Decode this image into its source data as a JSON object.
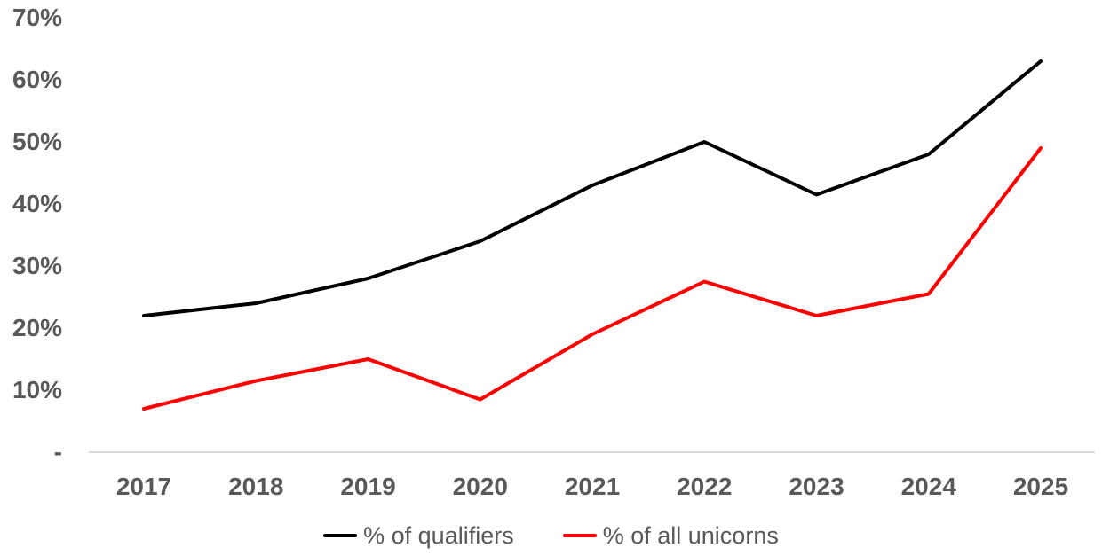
{
  "chart_data": {
    "type": "line",
    "categories": [
      "2017",
      "2018",
      "2019",
      "2020",
      "2021",
      "2022",
      "2023",
      "2024",
      "2025"
    ],
    "series": [
      {
        "name": "% of qualifiers",
        "color": "#000000",
        "values": [
          22,
          24,
          28,
          34,
          43,
          50,
          41.5,
          48,
          63
        ]
      },
      {
        "name": "% of all unicorns",
        "color": "#ff0000",
        "values": [
          7,
          11.5,
          15,
          8.5,
          19,
          27.5,
          22,
          25.5,
          49
        ]
      }
    ],
    "title": "",
    "xlabel": "",
    "ylabel": "",
    "ylim": [
      0,
      70
    ],
    "ytick_values": [
      70,
      60,
      50,
      40,
      30,
      20,
      10,
      0
    ],
    "ytick_labels": [
      "70%",
      "60%",
      "50%",
      "40%",
      "30%",
      "20%",
      "10%",
      "-"
    ],
    "grid": false,
    "legend_position": "bottom",
    "axis_color": "#d9d9d9",
    "label_color": "#595959"
  }
}
